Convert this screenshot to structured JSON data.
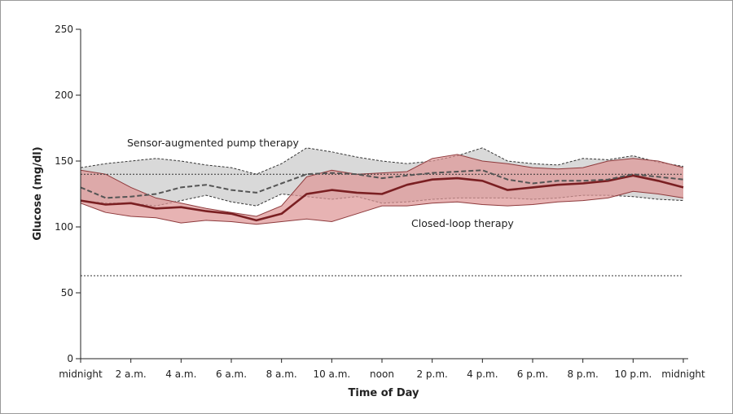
{
  "chart_data": {
    "type": "area",
    "xlabel": "Time of Day",
    "ylabel": "Glucose (mg/dl)",
    "ylim": [
      0,
      250
    ],
    "xlim": [
      0,
      24
    ],
    "y_ticks": [
      0,
      50,
      100,
      150,
      200,
      250
    ],
    "x_tick_hours": [
      0,
      2,
      4,
      6,
      8,
      10,
      12,
      14,
      16,
      18,
      20,
      22,
      24
    ],
    "x_tick_labels": [
      "midnight",
      "2 a.m.",
      "4 a.m.",
      "6 a.m.",
      "8 a.m.",
      "10 a.m.",
      "noon",
      "2 p.m.",
      "4 p.m.",
      "6 p.m.",
      "8 p.m.",
      "10 p.m.",
      "midnight"
    ],
    "reference_lines": [
      140,
      63
    ],
    "grid": false,
    "x": [
      0,
      1,
      2,
      3,
      4,
      5,
      6,
      7,
      8,
      9,
      10,
      11,
      12,
      13,
      14,
      15,
      16,
      17,
      18,
      19,
      20,
      21,
      22,
      23,
      24
    ],
    "series": [
      {
        "style": "solid-red",
        "color": "#7a1f22",
        "band_color": "#de9595",
        "median": [
          120,
          117,
          118,
          114,
          115,
          112,
          110,
          105,
          110,
          125,
          128,
          126,
          125,
          132,
          136,
          137,
          135,
          128,
          130,
          132,
          133,
          135,
          139,
          135,
          130
        ],
        "lower": [
          118,
          111,
          108,
          107,
          103,
          105,
          104,
          102,
          104,
          106,
          104,
          110,
          116,
          116,
          118,
          119,
          117,
          116,
          117,
          119,
          120,
          122,
          127,
          125,
          122
        ],
        "upper": [
          143,
          140,
          130,
          122,
          118,
          114,
          111,
          108,
          116,
          138,
          143,
          140,
          141,
          142,
          152,
          155,
          150,
          148,
          145,
          144,
          145,
          150,
          152,
          150,
          145
        ]
      },
      {
        "style": "dashed-gray",
        "color": "#555555",
        "band_color": "#d9d9d9",
        "median": [
          130,
          122,
          123,
          125,
          130,
          132,
          128,
          126,
          133,
          140,
          141,
          140,
          137,
          139,
          141,
          142,
          143,
          136,
          133,
          135,
          135,
          136,
          140,
          138,
          136
        ],
        "lower": [
          120,
          118,
          118,
          116,
          120,
          124,
          119,
          116,
          125,
          123,
          121,
          123,
          118,
          119,
          121,
          122,
          122,
          122,
          121,
          122,
          124,
          124,
          123,
          121,
          120
        ],
        "upper": [
          145,
          148,
          150,
          152,
          150,
          147,
          145,
          140,
          148,
          160,
          157,
          153,
          150,
          148,
          150,
          154,
          160,
          150,
          148,
          147,
          152,
          151,
          154,
          149,
          146
        ]
      }
    ],
    "annotations": [
      "Sensor-augmented pump therapy",
      "Closed-loop therapy"
    ]
  }
}
